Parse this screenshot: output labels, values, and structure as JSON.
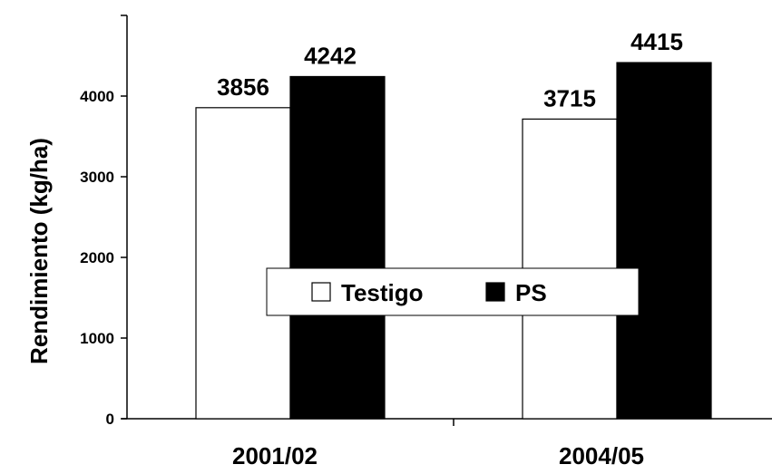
{
  "chart_data": {
    "type": "bar",
    "categories": [
      "2001/02",
      "2004/05"
    ],
    "series": [
      {
        "name": "Testigo",
        "values": [
          3856,
          3715
        ],
        "labels": [
          "3856",
          "3715"
        ],
        "color": "#ffffff"
      },
      {
        "name": "PS",
        "values": [
          4242,
          4415
        ],
        "labels": [
          "4242",
          "4415"
        ],
        "color": "#000000"
      }
    ],
    "title": "",
    "xlabel": "",
    "ylabel": "Rendimiento (kg/ha)",
    "ylim": [
      0,
      5000
    ],
    "yticks": [
      0,
      1000,
      2000,
      3000,
      4000
    ],
    "ytick_labels": [
      "0",
      "1000",
      "2000",
      "3000",
      "4000"
    ],
    "grid": false,
    "legend_position": "center"
  }
}
